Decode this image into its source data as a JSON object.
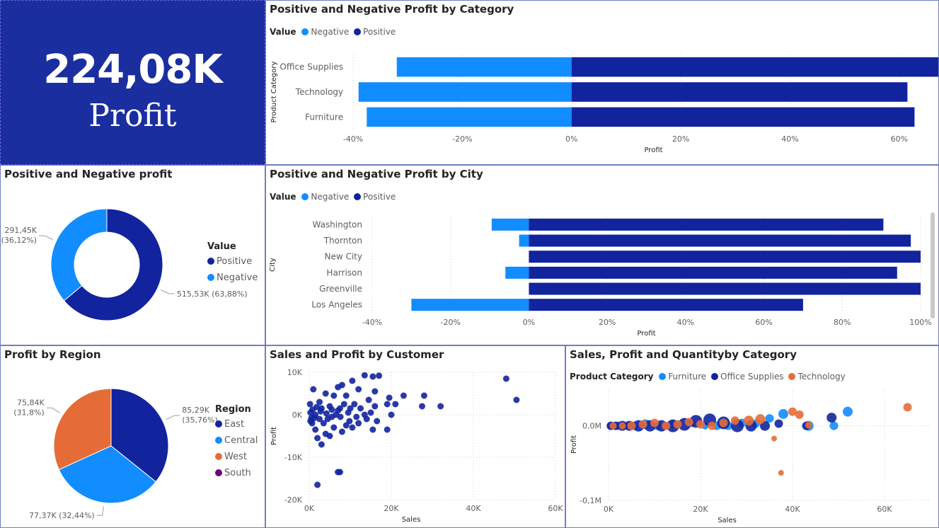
{
  "kpi": {
    "value": "224,08K",
    "label": "Profit"
  },
  "colors": {
    "negative": "#118DFF",
    "positive": "#12239E",
    "furniture": "#118DFF",
    "office_supplies": "#12239E",
    "technology": "#E66C37",
    "south": "#6B007B",
    "kpi_bg": "#1A2E9F"
  },
  "legend_titles": {
    "value": "Value",
    "region": "Region",
    "product_category": "Product Category"
  },
  "chart_data": [
    {
      "id": "profit_by_category",
      "type": "bar",
      "orientation": "horizontal",
      "title": "Positive and Negative Profit by Category",
      "xlabel": "Profit",
      "ylabel": "Product Category",
      "categories": [
        "Office Supplies",
        "Technology",
        "Furniture"
      ],
      "series": [
        {
          "name": "Negative",
          "values": [
            -32,
            -39,
            -37.5
          ]
        },
        {
          "name": "Positive",
          "values": [
            68.5,
            61.5,
            62.8
          ]
        }
      ],
      "xlim": [
        -40,
        70
      ],
      "xticks": [
        -40,
        -20,
        0,
        20,
        40,
        60
      ],
      "xtick_labels": [
        "-40%",
        "-20%",
        "0%",
        "20%",
        "40%",
        "60%"
      ]
    },
    {
      "id": "profit_donut",
      "type": "pie",
      "variant": "donut",
      "title": "Positive and Negative profit",
      "legend_title": "Value",
      "slices": [
        {
          "name": "Positive",
          "value": 515.53,
          "percent": 63.88,
          "label_line1": "515,53K (63,88%)",
          "label_line2": ""
        },
        {
          "name": "Negative",
          "value": 291.45,
          "percent": 36.12,
          "label_line1": "291,45K",
          "label_line2": "(36,12%)"
        }
      ]
    },
    {
      "id": "profit_by_city",
      "type": "bar",
      "orientation": "horizontal",
      "title": "Positive and Negative Profit by City",
      "xlabel": "Profit",
      "ylabel": "City",
      "categories": [
        "Washington",
        "Thornton",
        "New City",
        "Harrison",
        "Greenville",
        "Los Angeles"
      ],
      "series": [
        {
          "name": "Negative",
          "values": [
            -9.5,
            -2.5,
            0,
            -6,
            0,
            -30
          ]
        },
        {
          "name": "Positive",
          "values": [
            90.5,
            97.5,
            100,
            94,
            100,
            70
          ]
        }
      ],
      "xlim": [
        -40,
        100
      ],
      "xticks": [
        -40,
        -20,
        0,
        20,
        40,
        60,
        80,
        100
      ],
      "xtick_labels": [
        "-40%",
        "-20%",
        "0%",
        "20%",
        "40%",
        "60%",
        "80%",
        "100%"
      ]
    },
    {
      "id": "profit_by_region",
      "type": "pie",
      "title": "Profit by Region",
      "legend_title": "Region",
      "slices": [
        {
          "name": "East",
          "value": 85.29,
          "percent": 35.76,
          "label_line1": "85,29K",
          "label_line2": "(35,76%)"
        },
        {
          "name": "Central",
          "value": 77.37,
          "percent": 32.44,
          "label_line1": "77,37K (32,44%)",
          "label_line2": ""
        },
        {
          "name": "West",
          "value": 75.84,
          "percent": 31.8,
          "label_line1": "75,84K",
          "label_line2": "(31,8%)"
        },
        {
          "name": "South",
          "value": 0,
          "percent": 0,
          "label_line1": "",
          "label_line2": ""
        }
      ]
    },
    {
      "id": "sales_profit_by_customer",
      "type": "scatter",
      "title": "Sales and Profit by Customer",
      "xlabel": "Sales",
      "ylabel": "Profit",
      "xlim": [
        0,
        60000
      ],
      "ylim": [
        -20000,
        10000
      ],
      "xticks": [
        0,
        20000,
        40000,
        60000
      ],
      "xtick_labels": [
        "0K",
        "20K",
        "40K",
        "60K"
      ],
      "yticks": [
        10000,
        0,
        -10000,
        -20000
      ],
      "ytick_labels": [
        "10K",
        "0K",
        "-10K",
        "-20K"
      ],
      "points": [
        [
          48000,
          8500
        ],
        [
          50500,
          3500
        ],
        [
          28000,
          4500
        ],
        [
          32000,
          2000
        ],
        [
          27500,
          2000
        ],
        [
          17000,
          9200
        ],
        [
          15500,
          9000
        ],
        [
          13500,
          9300
        ],
        [
          10500,
          8000
        ],
        [
          8000,
          7000
        ],
        [
          7000,
          6500
        ],
        [
          9000,
          4500
        ],
        [
          12000,
          6000
        ],
        [
          16000,
          5500
        ],
        [
          14500,
          3500
        ],
        [
          19500,
          4000
        ],
        [
          16000,
          2000
        ],
        [
          19000,
          2500
        ],
        [
          20000,
          0
        ],
        [
          12500,
          1500
        ],
        [
          11000,
          2500
        ],
        [
          6000,
          4500
        ],
        [
          4000,
          5000
        ],
        [
          2500,
          3000
        ],
        [
          1000,
          6000
        ],
        [
          3000,
          1500
        ],
        [
          5000,
          2000
        ],
        [
          7500,
          1500
        ],
        [
          9500,
          500
        ],
        [
          11500,
          -500
        ],
        [
          13500,
          0
        ],
        [
          15000,
          500
        ],
        [
          16500,
          -1500
        ],
        [
          15500,
          -3500
        ],
        [
          12000,
          -2000
        ],
        [
          10500,
          -3000
        ],
        [
          9000,
          -2500
        ],
        [
          8000,
          -4000
        ],
        [
          6000,
          -3000
        ],
        [
          5000,
          -5000
        ],
        [
          4000,
          -4500
        ],
        [
          3000,
          -7000
        ],
        [
          2000,
          -5500
        ],
        [
          1500,
          -3500
        ],
        [
          700,
          -2000
        ],
        [
          300,
          500
        ],
        [
          800,
          1200
        ],
        [
          1500,
          0
        ],
        [
          2500,
          -1000
        ],
        [
          3500,
          -2000
        ],
        [
          4500,
          -1000
        ],
        [
          5500,
          -500
        ],
        [
          6500,
          0
        ],
        [
          7000,
          1000
        ],
        [
          8500,
          2500
        ],
        [
          10000,
          1500
        ],
        [
          300,
          -1500
        ],
        [
          200,
          2500
        ],
        [
          500,
          -800
        ],
        [
          1200,
          -800
        ],
        [
          1800,
          1800
        ],
        [
          2800,
          800
        ],
        [
          4200,
          300
        ],
        [
          5500,
          1200
        ],
        [
          7600,
          -500
        ],
        [
          9800,
          -1500
        ],
        [
          19000,
          -3500
        ],
        [
          7000,
          -13500
        ],
        [
          7500,
          -13500
        ],
        [
          2000,
          -16500
        ],
        [
          21000,
          2500
        ],
        [
          23000,
          4500
        ],
        [
          14000,
          -1000
        ]
      ]
    },
    {
      "id": "sales_profit_quantity_by_category",
      "type": "scatter",
      "variant": "bubble",
      "title": "Sales, Profit and Quantityby Category",
      "xlabel": "Sales",
      "ylabel": "Profit",
      "legend_title": "Product Category",
      "xlim": [
        0,
        70000
      ],
      "ylim": [
        -0.1,
        0.05
      ],
      "xticks": [
        0,
        20000,
        40000,
        60000
      ],
      "xtick_labels": [
        "0K",
        "20K",
        "40K",
        "60K"
      ],
      "yticks": [
        0,
        -0.1
      ],
      "ytick_labels": [
        "0,0M",
        "-0,1M"
      ],
      "series": [
        {
          "name": "Furniture",
          "color": "#118DFF",
          "points": [
            [
              500,
              0,
              5
            ],
            [
              2000,
              0,
              6
            ],
            [
              3500,
              0,
              5
            ],
            [
              5500,
              0,
              6
            ],
            [
              8000,
              0.002,
              7
            ],
            [
              10500,
              0,
              6
            ],
            [
              14000,
              0.002,
              6
            ],
            [
              18000,
              0.004,
              6
            ],
            [
              21000,
              0,
              5
            ],
            [
              23500,
              0,
              6
            ],
            [
              26000,
              0,
              6
            ],
            [
              29000,
              0.004,
              6
            ],
            [
              32000,
              0.003,
              6
            ],
            [
              35000,
              0.01,
              6
            ],
            [
              38000,
              0.016,
              7
            ],
            [
              43500,
              0,
              7
            ],
            [
              49000,
              0,
              6
            ],
            [
              52000,
              0.019,
              7
            ]
          ]
        },
        {
          "name": "Office Supplies",
          "color": "#12239E",
          "points": [
            [
              500,
              0,
              6
            ],
            [
              1500,
              0,
              6
            ],
            [
              3000,
              0,
              7
            ],
            [
              4500,
              0,
              7
            ],
            [
              6500,
              0,
              8
            ],
            [
              9000,
              0,
              8
            ],
            [
              11500,
              0,
              8
            ],
            [
              14000,
              0,
              9
            ],
            [
              16500,
              0.002,
              9
            ],
            [
              19000,
              0.006,
              9
            ],
            [
              22000,
              0.008,
              9
            ],
            [
              25000,
              0.004,
              9
            ],
            [
              28000,
              0,
              9
            ],
            [
              31000,
              0,
              8
            ],
            [
              34000,
              0,
              7
            ],
            [
              37000,
              0.003,
              6
            ],
            [
              43000,
              0,
              6
            ],
            [
              48500,
              0.011,
              7
            ]
          ]
        },
        {
          "name": "Technology",
          "color": "#E66C37",
          "points": [
            [
              1000,
              0,
              5
            ],
            [
              3000,
              0,
              5
            ],
            [
              5000,
              0,
              6
            ],
            [
              7500,
              0.002,
              6
            ],
            [
              10000,
              0.004,
              6
            ],
            [
              12500,
              0,
              6
            ],
            [
              15000,
              0.002,
              6
            ],
            [
              17500,
              0.005,
              6
            ],
            [
              20000,
              0.002,
              6
            ],
            [
              22500,
              0,
              6
            ],
            [
              25000,
              0.004,
              6
            ],
            [
              27500,
              0.007,
              6
            ],
            [
              30500,
              0.007,
              7
            ],
            [
              33000,
              0.009,
              7
            ],
            [
              36000,
              -0.017,
              4
            ],
            [
              37500,
              -0.063,
              4
            ],
            [
              40000,
              0.019,
              6
            ],
            [
              41500,
              0.015,
              6
            ],
            [
              43500,
              0.001,
              5
            ],
            [
              65000,
              0.025,
              6
            ]
          ]
        }
      ]
    }
  ]
}
